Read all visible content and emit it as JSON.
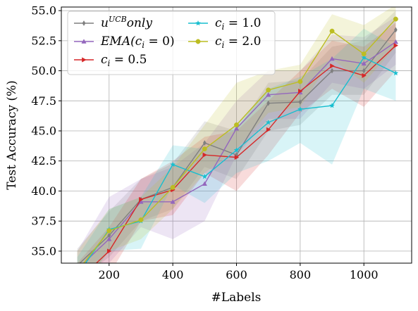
{
  "chart_data": {
    "type": "line",
    "title": "",
    "xlabel": "#Labels",
    "ylabel": "Test Accuracy (%)",
    "xlim": [
      50,
      1150
    ],
    "ylim": [
      34,
      55.3
    ],
    "xticks": [
      200,
      400,
      600,
      800,
      1000
    ],
    "yticks": [
      35.0,
      37.5,
      40.0,
      42.5,
      45.0,
      47.5,
      50.0,
      52.5,
      55.0
    ],
    "ytick_labels": [
      "35.0",
      "37.5",
      "40.0",
      "42.5",
      "45.0",
      "47.5",
      "50.0",
      "52.5",
      "55.0"
    ],
    "grid": true,
    "legend_position": "top-left",
    "legend_columns": 2,
    "x": [
      100,
      200,
      300,
      400,
      500,
      600,
      700,
      800,
      900,
      1000,
      1100
    ],
    "series": [
      {
        "name": "u^UCB only",
        "label_base": "u",
        "label_sup": "UCB",
        "label_rest": "only",
        "color": "#7f7f7f",
        "marker": "diamond",
        "values": [
          33.8,
          36.3,
          39.3,
          40.3,
          44.0,
          43.0,
          47.3,
          47.4,
          50.0,
          50.0,
          53.4
        ],
        "lower": [
          32.5,
          34.5,
          37.5,
          38.5,
          42.0,
          41.0,
          45.0,
          45.5,
          48.0,
          48.0,
          51.5
        ],
        "upper": [
          35.2,
          38.3,
          41.0,
          42.3,
          45.8,
          45.0,
          49.0,
          49.2,
          52.0,
          52.5,
          55.0
        ]
      },
      {
        "name": "EMA(c_i = 0)",
        "label_base": "EMA(c",
        "label_sub": "i",
        "label_rest": " = 0)",
        "color": "#9467bd",
        "marker": "triangle",
        "values": [
          33.5,
          36.0,
          39.1,
          39.1,
          40.6,
          45.2,
          48.0,
          48.2,
          51.0,
          50.6,
          52.4
        ],
        "lower": [
          32.0,
          34.0,
          37.0,
          36.0,
          37.5,
          43.0,
          46.0,
          46.0,
          49.0,
          48.5,
          50.5
        ],
        "upper": [
          35.0,
          39.5,
          41.0,
          42.0,
          44.0,
          47.5,
          50.0,
          50.0,
          53.0,
          52.8,
          54.5
        ]
      },
      {
        "name": "c_i = 0.5",
        "label_base": "c",
        "label_sub": "i",
        "label_rest": " = 0.5",
        "color": "#d62728",
        "marker": "triangle-right",
        "values": [
          32.5,
          35.0,
          39.3,
          40.1,
          43.0,
          42.8,
          45.1,
          48.3,
          50.4,
          49.6,
          52.1
        ],
        "lower": [
          31.0,
          33.0,
          37.5,
          38.0,
          41.5,
          40.0,
          43.0,
          46.5,
          48.5,
          47.0,
          50.0
        ],
        "upper": [
          34.0,
          37.0,
          41.0,
          42.5,
          44.5,
          45.0,
          47.5,
          50.0,
          52.5,
          52.0,
          54.0
        ]
      },
      {
        "name": "c_i = 1.0",
        "label_base": "c",
        "label_sub": "i",
        "label_rest": " = 1.0",
        "color": "#17becf",
        "marker": "star",
        "values": [
          33.0,
          36.8,
          37.5,
          42.2,
          41.2,
          43.4,
          45.7,
          46.8,
          47.1,
          51.1,
          49.8
        ],
        "lower": [
          31.5,
          35.0,
          35.2,
          40.5,
          39.0,
          41.5,
          42.5,
          44.0,
          42.2,
          48.5,
          47.5
        ],
        "upper": [
          34.5,
          38.5,
          39.5,
          43.8,
          43.5,
          45.5,
          48.5,
          49.5,
          51.0,
          53.5,
          52.0
        ]
      },
      {
        "name": "c_i = 2.0",
        "label_base": "c",
        "label_sub": "i",
        "label_rest": " = 2.0",
        "color": "#bcbd22",
        "marker": "circle",
        "values": [
          33.3,
          36.7,
          37.6,
          40.3,
          43.5,
          45.5,
          48.4,
          49.1,
          53.3,
          51.4,
          54.3
        ],
        "lower": [
          31.5,
          35.0,
          36.0,
          38.5,
          41.5,
          43.5,
          46.5,
          47.0,
          51.0,
          49.0,
          52.0
        ],
        "upper": [
          35.0,
          38.5,
          39.5,
          42.0,
          45.5,
          49.0,
          50.0,
          50.5,
          54.7,
          53.8,
          55.5
        ]
      }
    ]
  }
}
